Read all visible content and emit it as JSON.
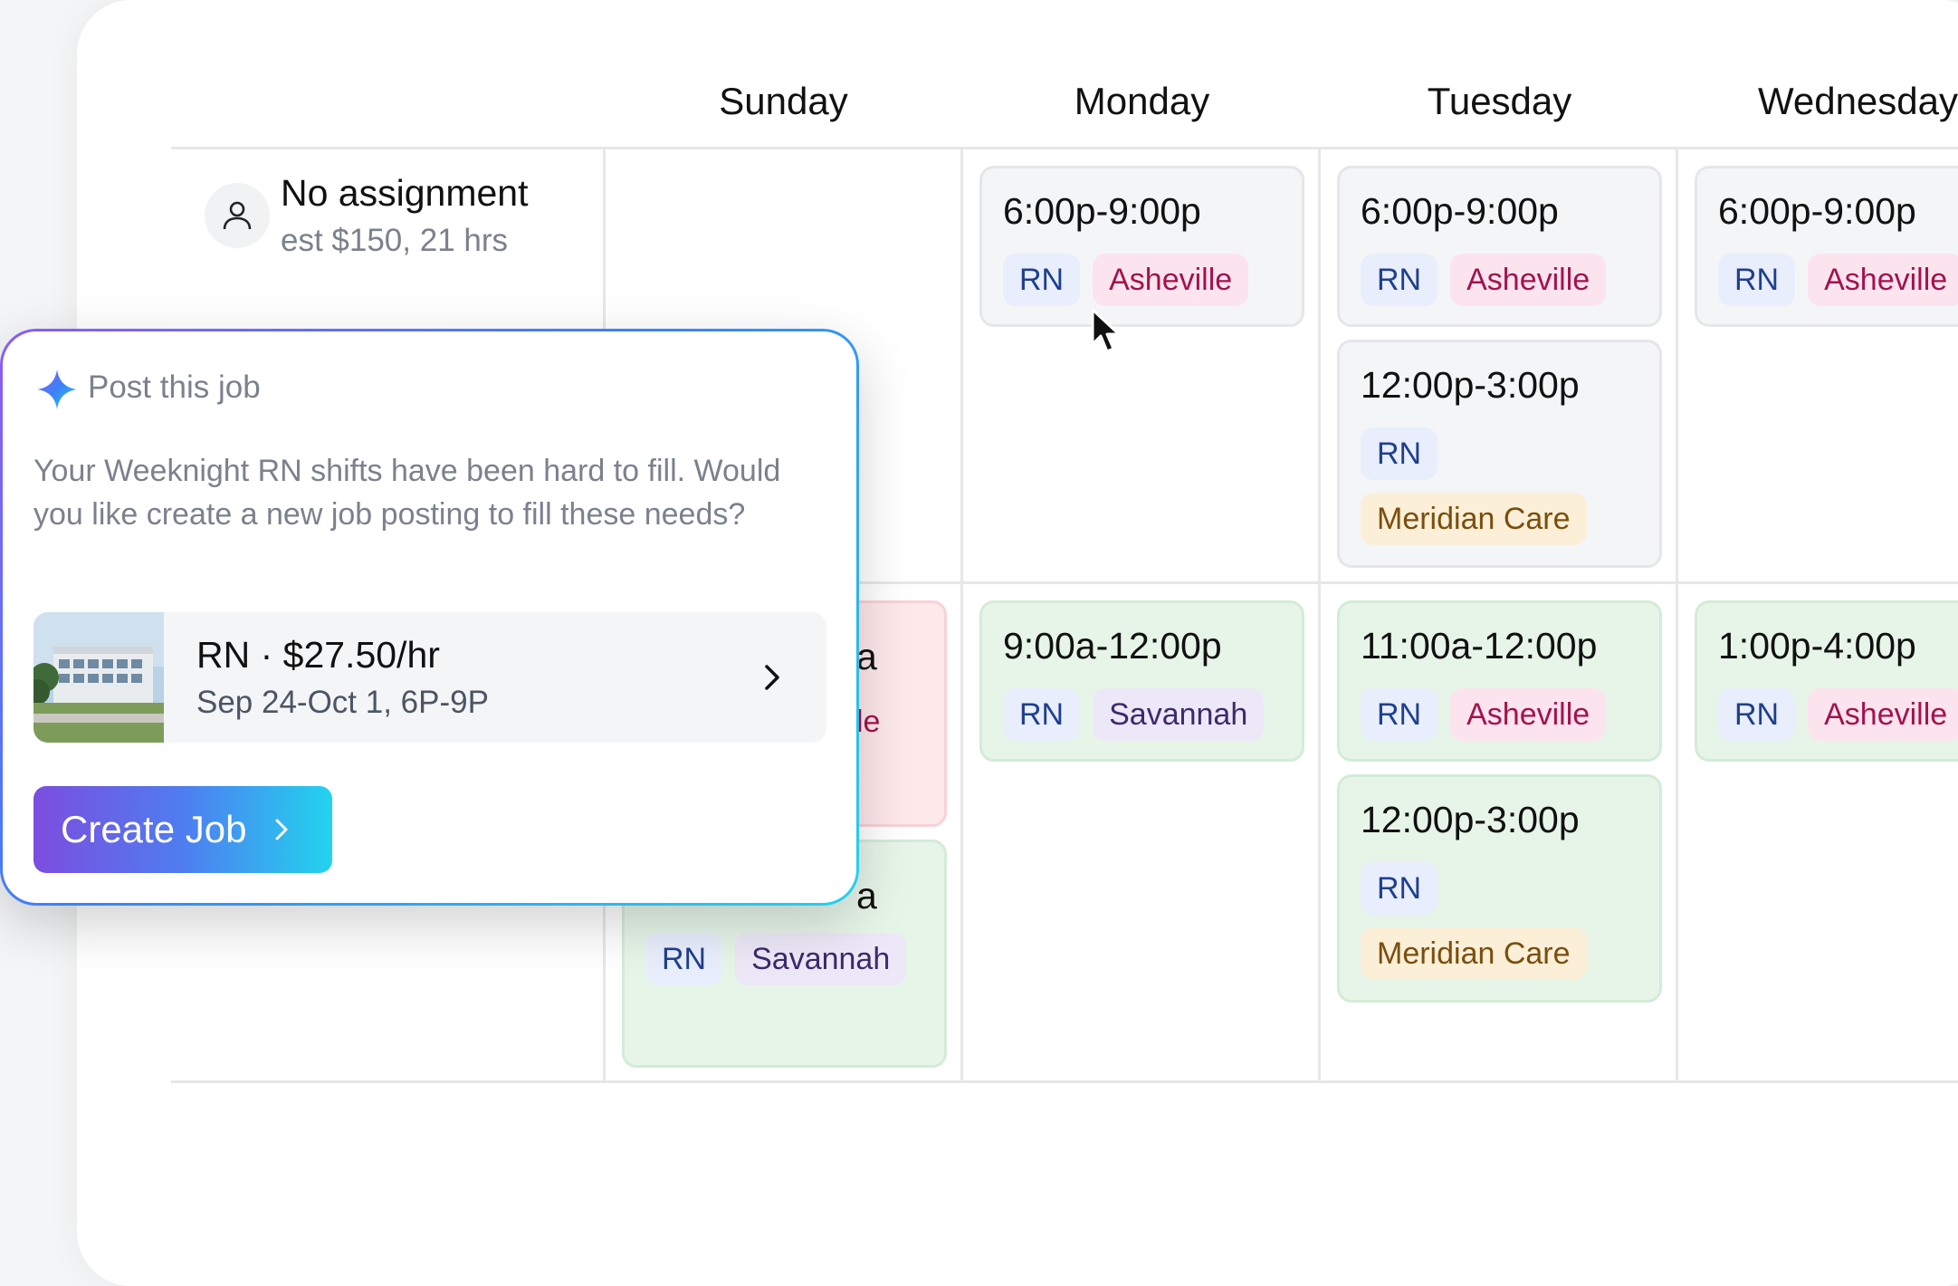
{
  "days": [
    "Sunday",
    "Monday",
    "Tuesday",
    "Wednesday"
  ],
  "row": {
    "title": "No assignment",
    "subtitle": "est $150, 21 hrs",
    "icon": "person-icon"
  },
  "shifts": {
    "mon1": {
      "time": "6:00p-9:00p",
      "role": "RN",
      "location": "Asheville"
    },
    "tue1": {
      "time": "6:00p-9:00p",
      "role": "RN",
      "location": "Asheville"
    },
    "tue2": {
      "time": "12:00p-3:00p",
      "role": "RN",
      "location": "Meridian Care"
    },
    "wed1": {
      "time": "6:00p-9:00p",
      "role": "RN",
      "location": "Asheville"
    },
    "sun_red": {
      "time_fragment": "a",
      "location_fragment": "le"
    },
    "sun_green": {
      "time_fragment": "a",
      "role": "RN",
      "location": "Savannah"
    },
    "mon2": {
      "time": "9:00a-12:00p",
      "role": "RN",
      "location": "Savannah"
    },
    "tue3": {
      "time": "11:00a-12:00p",
      "role": "RN",
      "location": "Asheville"
    },
    "tue4": {
      "time": "12:00p-3:00p",
      "role": "RN",
      "location": "Meridian Care"
    },
    "wed2": {
      "time": "1:00p-4:00p",
      "role": "RN",
      "location": "Asheville"
    }
  },
  "popup": {
    "title": "Post this job",
    "message": "Your Weeknight RN shifts have been hard to fill. Would you like create a new job posting to fill these needs?",
    "job_title": "RN · $27.50/hr",
    "job_dates": "Sep 24-Oct 1, 6P-9P",
    "button_label": "Create Job"
  },
  "colors": {
    "accent_gradient": [
      "#7c4ddf",
      "#4f7df0",
      "#22d3ee"
    ],
    "tag_rn": "#e8eefc",
    "tag_asheville": "#fce4ee",
    "tag_savannah": "#ece8f8",
    "tag_meridian": "#fcefd8",
    "shift_gray": "#f4f5f7",
    "shift_green": "#e7f5e9",
    "shift_red": "#fde8ea"
  }
}
